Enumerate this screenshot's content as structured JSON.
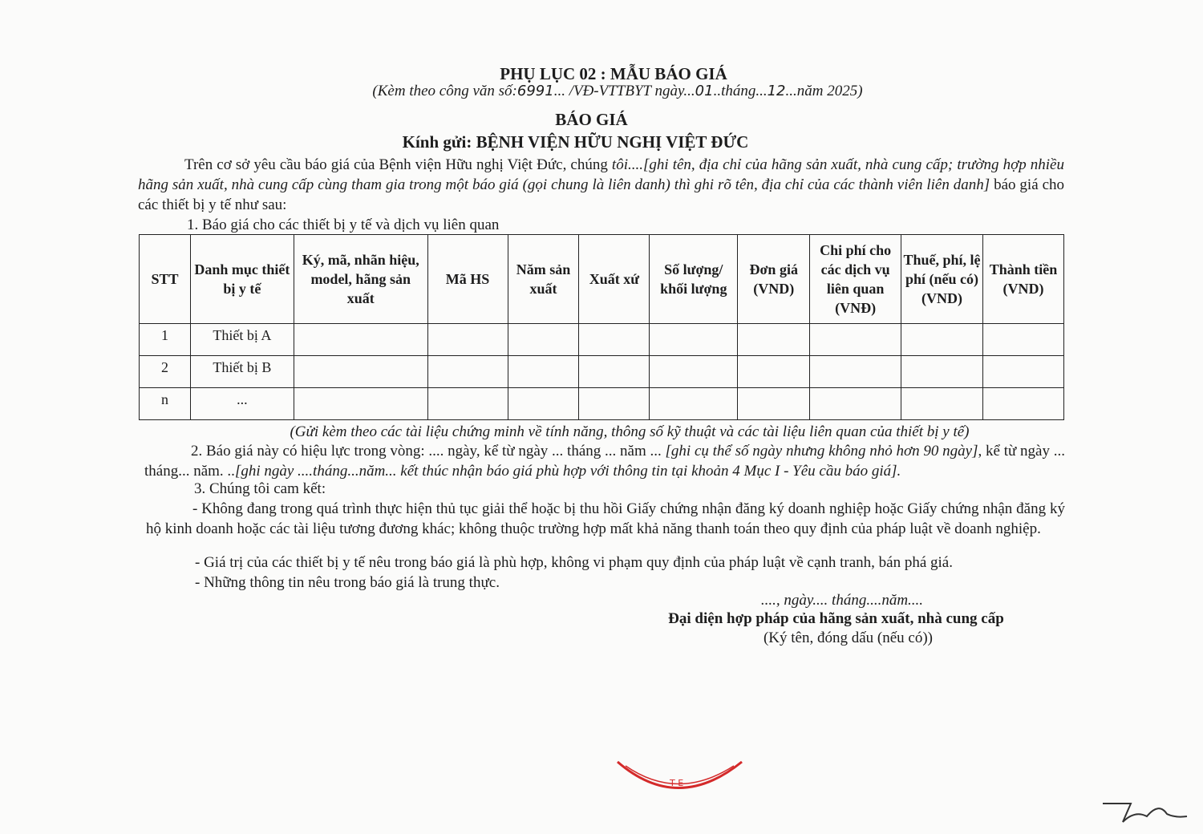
{
  "header": {
    "title": "PHỤ LỤC 02 : MẪU BÁO GIÁ",
    "ref_prefix": "(Kèm theo công văn số:",
    "ref_number": "6991",
    "ref_mid1": "... /VĐ-VTTBYT ngày...",
    "ref_day": "01",
    "ref_mid2": "..tháng...",
    "ref_month": "12",
    "ref_suffix": "...năm 2025)",
    "doc_title": "BÁO GIÁ",
    "recipient": "Kính gửi: BỆNH VIỆN HỮU NGHỊ VIỆT ĐỨC"
  },
  "intro": {
    "text1": "Trên cơ sở yêu cầu báo giá của Bệnh viện Hữu nghị Việt Đức, chúng ",
    "italic": "tôi....[ghi tên, địa chỉ của hãng sản xuất, nhà cung cấp; trường hợp nhiều hãng sản xuất, nhà cung cấp cùng tham gia trong một báo giá (gọi chung là liên danh) thì ghi rõ tên, địa chỉ của các thành viên liên danh]",
    "text2": " báo giá cho các thiết bị y tế như sau:"
  },
  "section1": "1. Báo giá cho các thiết bị y tế và dịch vụ liên quan",
  "table": {
    "headers": [
      "STT",
      "Danh mục thiết bị y tế",
      "Ký, mã, nhãn hiệu, model, hãng sản xuất",
      "Mã HS",
      "Năm sản xuất",
      "Xuất xứ",
      "Số lượng/ khối lượng",
      "Đơn giá (VND)",
      "Chi phí cho các dịch vụ liên quan (VNĐ)",
      "Thuế, phí, lệ phí (nếu có) (VND)",
      "Thành tiền (VND)"
    ],
    "rows": [
      [
        "1",
        "Thiết bị A",
        "",
        "",
        "",
        "",
        "",
        "",
        "",
        "",
        ""
      ],
      [
        "2",
        "Thiết bị B",
        "",
        "",
        "",
        "",
        "",
        "",
        "",
        "",
        ""
      ],
      [
        "n",
        "...",
        "",
        "",
        "",
        "",
        "",
        "",
        "",
        "",
        ""
      ]
    ]
  },
  "table_note": "(Gửi kèm theo các tài liệu chứng minh về tính năng, thông số kỹ thuật và các tài liệu liên quan của thiết bị y tế)",
  "section2": {
    "text1": "2. Báo giá này có hiệu lực trong vòng: .... ngày, kể từ ngày ... tháng ... năm ... ",
    "italic1": "[ghi cụ thể số ngày nhưng không nhỏ hơn 90 ngày]",
    "text2": ", kể từ ngày ... tháng... năm. ..",
    "italic2": "[ghi ngày ....tháng...năm... kết thúc nhận báo giá phù hợp với thông tin tại khoản 4 Mục I - Yêu cầu báo giá]."
  },
  "section3": {
    "title": "3. Chúng tôi cam kết:",
    "items": [
      "- Không đang trong quá trình thực hiện thủ tục giải thể hoặc bị thu hồi Giấy chứng nhận đăng ký doanh nghiệp hoặc Giấy chứng nhận đăng ký hộ kinh doanh hoặc các tài liệu tương đương khác; không thuộc trường hợp mất khả năng thanh toán theo quy định của pháp luật về doanh nghiệp.",
      "- Giá trị của các thiết bị y tế nêu trong báo giá là phù hợp, không vi phạm quy định của pháp luật về cạnh tranh, bán phá giá.",
      "- Những thông tin nêu trong báo giá là trung thực."
    ]
  },
  "signature": {
    "date_line": "...., ngày.... tháng....năm....",
    "role": "Đại diện hợp pháp của hãng sản xuất, nhà cung cấp",
    "note": "(Ký tên, đóng dấu (nếu có))"
  },
  "colors": {
    "stamp": "#d42a2a",
    "ink": "#1d1d1d"
  }
}
